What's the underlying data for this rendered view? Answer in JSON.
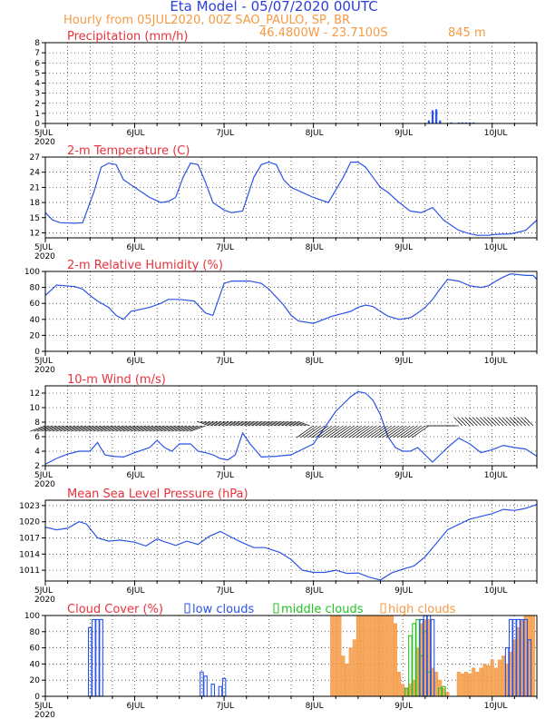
{
  "header": {
    "title": "Eta Model - 05/07/2020 00UTC",
    "subtitle": "Hourly from 05JUL2020, 00Z  SAO_PAULO, SP, BR",
    "location": "46.4800W - 23.7100S",
    "elevation": "845  m"
  },
  "colors": {
    "title": "#2b3fd8",
    "orange": "#f59a44",
    "red": "#e8323c",
    "line": "#2b54e6",
    "low": "#2b54e6",
    "middle": "#22c222",
    "high": "#f59a44",
    "arrow": "#000000"
  },
  "chart_data": [
    {
      "id": "precip",
      "type": "bar",
      "title": "Precipitation (mm/h)",
      "xlabel": "",
      "ylabel": "mm/h",
      "xlim": [
        0,
        132
      ],
      "ylim": [
        0,
        8
      ],
      "yticks": [
        0,
        1,
        2,
        3,
        4,
        5,
        6,
        7,
        8
      ],
      "xtick_positions": [
        0,
        24,
        48,
        72,
        96,
        120
      ],
      "xtick_labels": [
        "5JUL",
        "6JUL",
        "7JUL",
        "8JUL",
        "9JUL",
        "10JUL"
      ],
      "year_label": "2020",
      "points": [
        [
          103,
          0.3
        ],
        [
          104,
          1.3
        ],
        [
          105,
          1.4
        ],
        [
          106,
          0.3
        ],
        [
          109,
          0.1
        ],
        [
          111,
          0.1
        ],
        [
          112,
          0.1
        ],
        [
          113,
          0.1
        ],
        [
          114,
          0.1
        ],
        [
          115,
          0.1
        ],
        [
          117,
          0.05
        ],
        [
          128,
          0.05
        ]
      ]
    },
    {
      "id": "temp",
      "type": "line",
      "title": "2-m Temperature (C)",
      "xlabel": "",
      "ylabel": "C",
      "xlim": [
        0,
        132
      ],
      "ylim": [
        11,
        27
      ],
      "yticks": [
        12,
        15,
        18,
        21,
        24,
        27
      ],
      "xtick_positions": [
        0,
        24,
        48,
        72,
        96,
        120
      ],
      "xtick_labels": [
        "5JUL",
        "6JUL",
        "7JUL",
        "8JUL",
        "9JUL",
        "10JUL"
      ],
      "year_label": "2020",
      "x": [
        0,
        2,
        4,
        8,
        10,
        13,
        15,
        17,
        19,
        21,
        24,
        28,
        31,
        33,
        35,
        37,
        39,
        41,
        43,
        45,
        48,
        50,
        53,
        56,
        58,
        60,
        62,
        64,
        66,
        69,
        72,
        76,
        80,
        82,
        84,
        86,
        88,
        90,
        92,
        95,
        98,
        101,
        104,
        107,
        109,
        111,
        114,
        116,
        119,
        121,
        125,
        129,
        132
      ],
      "y": [
        16,
        14.5,
        14,
        13.9,
        14,
        20,
        25,
        25.8,
        25.5,
        22.5,
        21,
        19,
        18,
        18.2,
        19,
        23,
        25.8,
        25.5,
        22,
        18,
        16.5,
        16,
        16.3,
        23,
        25.5,
        26,
        25.5,
        22.5,
        21,
        20,
        19,
        18,
        23,
        26,
        26,
        25,
        23,
        21,
        20,
        18,
        16.3,
        16,
        17,
        14.5,
        13.5,
        12.5,
        11.8,
        11.5,
        11.5,
        11.7,
        11.8,
        12.5,
        14.5
      ]
    },
    {
      "id": "rh",
      "type": "line",
      "title": "2-m Relative Humidity (%)",
      "xlabel": "",
      "ylabel": "%",
      "xlim": [
        0,
        132
      ],
      "ylim": [
        0,
        100
      ],
      "yticks": [
        0,
        20,
        40,
        60,
        80,
        100
      ],
      "xtick_positions": [
        0,
        24,
        48,
        72,
        96,
        120
      ],
      "xtick_labels": [
        "5JUL",
        "6JUL",
        "7JUL",
        "8JUL",
        "9JUL",
        "10JUL"
      ],
      "year_label": "2020",
      "x": [
        0,
        3,
        8,
        10,
        12,
        14,
        17,
        19,
        21,
        23,
        28,
        31,
        33,
        36,
        40,
        43,
        45,
        48,
        50,
        55,
        58,
        60,
        62,
        64,
        66,
        68,
        72,
        77,
        82,
        84,
        86,
        88,
        90,
        92,
        95,
        98,
        100,
        102,
        104,
        106,
        108,
        111,
        114,
        117,
        119,
        121,
        123,
        125,
        129,
        131,
        132
      ],
      "y": [
        70,
        83,
        81,
        78,
        70,
        63,
        55,
        45,
        40,
        50,
        55,
        60,
        65,
        65,
        63,
        48,
        45,
        85,
        88,
        88,
        85,
        78,
        68,
        58,
        45,
        38,
        35,
        44,
        50,
        55,
        58,
        56,
        50,
        44,
        40,
        42,
        48,
        55,
        65,
        78,
        90,
        88,
        82,
        80,
        82,
        88,
        93,
        97,
        95,
        95,
        90
      ]
    },
    {
      "id": "wind",
      "type": "line",
      "title": "10-m Wind (m/s)",
      "xlabel": "",
      "ylabel": "m/s",
      "xlim": [
        0,
        132
      ],
      "ylim": [
        2,
        13
      ],
      "yticks": [
        2,
        4,
        6,
        8,
        10,
        12
      ],
      "xtick_positions": [
        0,
        24,
        48,
        72,
        96,
        120
      ],
      "xtick_labels": [
        "5JUL",
        "6JUL",
        "7JUL",
        "8JUL",
        "9JUL",
        "10JUL"
      ],
      "year_label": "2020",
      "x": [
        0,
        3,
        6,
        9,
        12,
        14,
        16,
        18,
        21,
        24,
        28,
        30,
        32,
        34,
        36,
        39,
        41,
        43,
        45,
        47,
        49,
        51,
        53,
        55,
        58,
        62,
        66,
        70,
        72,
        74,
        76,
        78,
        80,
        82,
        84,
        86,
        88,
        90,
        92,
        94,
        96,
        98,
        100,
        102,
        104,
        106,
        108,
        111,
        114,
        117,
        120,
        123,
        126,
        129,
        132
      ],
      "y": [
        2.2,
        3,
        3.6,
        4,
        4,
        5.2,
        3.5,
        3.3,
        3.2,
        3.8,
        4.5,
        5.5,
        4.5,
        4,
        5,
        5,
        4,
        3.8,
        3.5,
        3,
        2.8,
        3.5,
        6.5,
        5,
        3.2,
        3.3,
        3.5,
        4.5,
        5,
        6.5,
        8,
        9.5,
        10.5,
        11.5,
        12.2,
        12,
        11,
        9,
        6,
        4.5,
        4,
        4,
        4.5,
        3.5,
        2.5,
        3.5,
        4.5,
        5.8,
        5,
        3.8,
        4.2,
        4.8,
        4.5,
        4.3,
        3.3
      ]
    },
    {
      "id": "mslp",
      "type": "line",
      "title": "Mean Sea Level Pressure (hPa)",
      "xlabel": "",
      "ylabel": "hPa",
      "xlim": [
        0,
        132
      ],
      "ylim": [
        1009,
        1024
      ],
      "yticks": [
        1011,
        1014,
        1017,
        1020,
        1023
      ],
      "xtick_positions": [
        0,
        24,
        48,
        72,
        96,
        120
      ],
      "xtick_labels": [
        "5JUL",
        "6JUL",
        "7JUL",
        "8JUL",
        "9JUL",
        "10JUL"
      ],
      "year_label": "2020",
      "x": [
        0,
        3,
        6,
        9,
        11,
        14,
        17,
        20,
        24,
        27,
        30,
        32,
        35,
        38,
        41,
        44,
        47,
        50,
        53,
        56,
        59,
        63,
        66,
        69,
        72,
        75,
        78,
        81,
        84,
        87,
        90,
        93,
        96,
        99,
        102,
        105,
        108,
        111,
        114,
        117,
        120,
        123,
        126,
        129,
        132
      ],
      "y": [
        1019,
        1018.5,
        1018.8,
        1020,
        1019.6,
        1017,
        1016.4,
        1016.6,
        1016.2,
        1015.5,
        1016.8,
        1016.3,
        1015.6,
        1016.4,
        1015.8,
        1017.3,
        1018.2,
        1017.1,
        1016.1,
        1015.2,
        1015.2,
        1014.3,
        1013,
        1011,
        1010.6,
        1010.6,
        1011,
        1010.4,
        1010.5,
        1009.7,
        1009.2,
        1010.5,
        1011.2,
        1011.8,
        1013.5,
        1016,
        1018.5,
        1019.5,
        1020.5,
        1021,
        1021.5,
        1022.3,
        1022.1,
        1022.5,
        1023.2
      ]
    },
    {
      "id": "cloud",
      "type": "bar",
      "title": "Cloud Cover (%)",
      "xlabel": "",
      "ylabel": "%",
      "xlim": [
        0,
        132
      ],
      "ylim": [
        0,
        100
      ],
      "yticks": [
        0,
        20,
        40,
        60,
        80,
        100
      ],
      "xtick_positions": [
        0,
        24,
        48,
        72,
        96,
        120
      ],
      "xtick_labels": [
        "5JUL",
        "6JUL",
        "7JUL",
        "8JUL",
        "9JUL",
        "10JUL"
      ],
      "year_label": "2020",
      "legend": [
        "low clouds",
        "middle clouds",
        "high clouds"
      ],
      "series": [
        {
          "name": "high clouds",
          "points": [
            [
              77,
              100
            ],
            [
              78,
              100
            ],
            [
              79,
              100
            ],
            [
              80,
              50
            ],
            [
              81,
              40
            ],
            [
              82,
              60
            ],
            [
              83,
              70
            ],
            [
              84,
              100
            ],
            [
              85,
              100
            ],
            [
              86,
              100
            ],
            [
              87,
              100
            ],
            [
              88,
              100
            ],
            [
              89,
              100
            ],
            [
              90,
              100
            ],
            [
              91,
              100
            ],
            [
              92,
              100
            ],
            [
              93,
              100
            ],
            [
              94,
              90
            ],
            [
              95,
              30
            ],
            [
              96,
              15
            ],
            [
              97,
              10
            ],
            [
              98,
              15
            ],
            [
              99,
              20
            ],
            [
              100,
              60
            ],
            [
              101,
              90
            ],
            [
              102,
              95
            ],
            [
              103,
              95
            ],
            [
              104,
              35
            ],
            [
              105,
              30
            ],
            [
              106,
              20
            ],
            [
              107,
              10
            ],
            [
              108,
              5
            ],
            [
              111,
              30
            ],
            [
              112,
              28
            ],
            [
              113,
              30
            ],
            [
              114,
              28
            ],
            [
              115,
              35
            ],
            [
              116,
              30
            ],
            [
              117,
              35
            ],
            [
              118,
              40
            ],
            [
              119,
              38
            ],
            [
              120,
              45
            ],
            [
              121,
              35
            ],
            [
              122,
              45
            ],
            [
              123,
              50
            ],
            [
              124,
              40
            ],
            [
              125,
              55
            ],
            [
              126,
              70
            ],
            [
              127,
              85
            ],
            [
              128,
              95
            ],
            [
              129,
              100
            ],
            [
              130,
              100
            ],
            [
              131,
              100
            ]
          ]
        },
        {
          "name": "middle clouds",
          "points": [
            [
              97,
              10
            ],
            [
              98,
              75
            ],
            [
              99,
              90
            ],
            [
              100,
              95
            ],
            [
              101,
              50
            ],
            [
              102,
              80
            ],
            [
              103,
              30
            ],
            [
              106,
              10
            ],
            [
              107,
              12
            ]
          ]
        },
        {
          "name": "low clouds",
          "points": [
            [
              12,
              85
            ],
            [
              13,
              95
            ],
            [
              14,
              95
            ],
            [
              15,
              95
            ],
            [
              42,
              30
            ],
            [
              43,
              25
            ],
            [
              45,
              15
            ],
            [
              47,
              12
            ],
            [
              48,
              22
            ],
            [
              101,
              95
            ],
            [
              102,
              100
            ],
            [
              103,
              100
            ],
            [
              104,
              95
            ],
            [
              124,
              60
            ],
            [
              125,
              95
            ],
            [
              126,
              95
            ],
            [
              127,
              95
            ],
            [
              128,
              95
            ],
            [
              129,
              95
            ],
            [
              130,
              70
            ]
          ]
        }
      ]
    }
  ]
}
